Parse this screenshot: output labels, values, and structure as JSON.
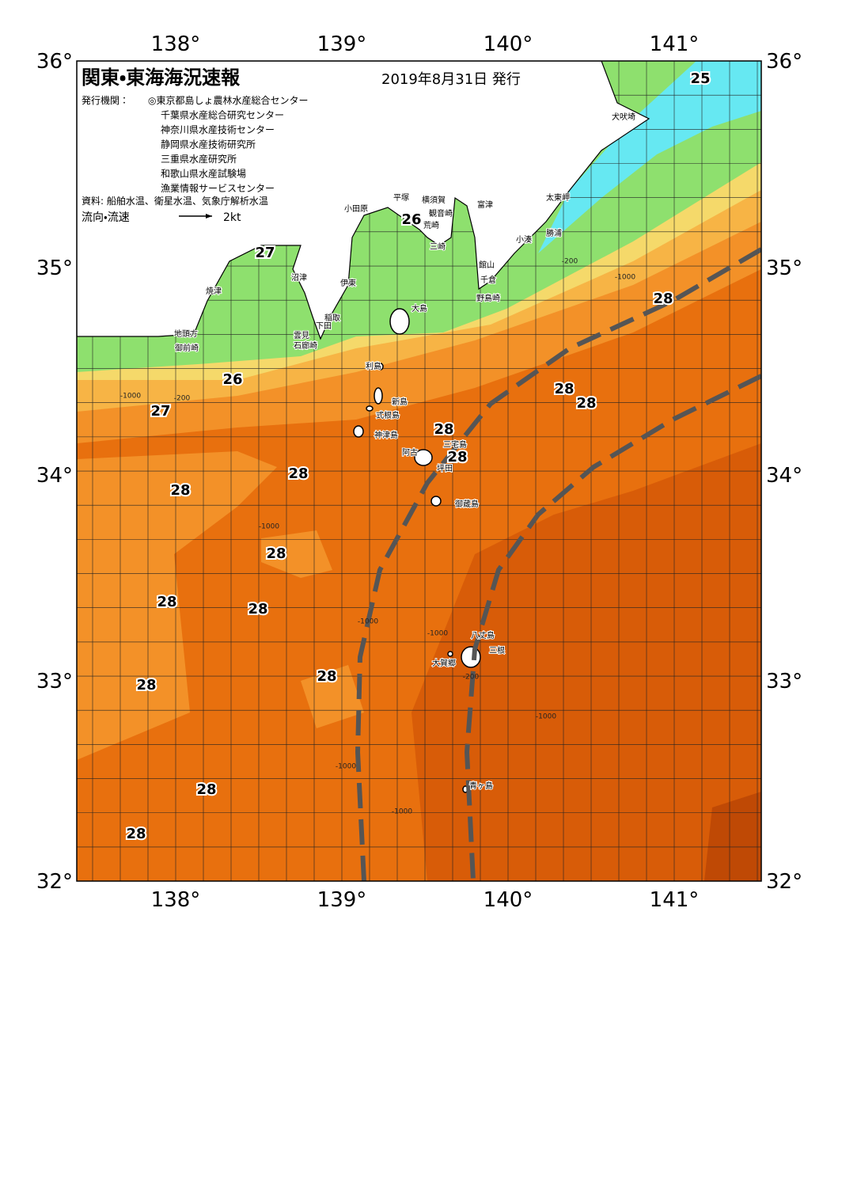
{
  "header": {
    "title": "関東・東海海況速報",
    "date": "2019年8月31日 発行"
  },
  "issuers": {
    "label": "発行機関：",
    "names": [
      "◎東京都島しょ農林水産総合センター",
      "千葉県水産総合研究センター",
      "神奈川県水産技術センター",
      "静岡県水産技術研究所",
      "三重県水産研究所",
      "和歌山県水産試験場",
      "漁業情報サービスセンター"
    ]
  },
  "sources": "資料: 船舶水温、衛星水温、気象庁解析水温",
  "legend": {
    "label": "流向・流速",
    "speed": "2kt"
  },
  "axes": {
    "longitude_labels": [
      "138°",
      "139°",
      "140°",
      "141°"
    ],
    "latitude_labels": [
      "36°",
      "35°",
      "34°",
      "33°",
      "32°"
    ]
  },
  "places": [
    "犬吠埼",
    "太東岬",
    "勝浦",
    "小湊",
    "富津",
    "館山",
    "千倉",
    "野島崎",
    "横須賀",
    "観音崎",
    "平塚",
    "荒崎",
    "三崎",
    "小田原",
    "沼津",
    "伊東",
    "焼津",
    "大島",
    "稲取",
    "下田",
    "雲見",
    "石廊崎",
    "地頭方",
    "御前崎",
    "利島",
    "新島",
    "式根島",
    "神津島",
    "三宅島",
    "阿古",
    "坪田",
    "御蔵島",
    "八丈島",
    "三根",
    "大賀郷",
    "青ヶ島"
  ],
  "temperature_labels": [
    25,
    26,
    27,
    26,
    27,
    28,
    28,
    28,
    28,
    28,
    28,
    28,
    28,
    28,
    28,
    28,
    28,
    28,
    28
  ],
  "depth_labels": [
    "-200",
    "-1000",
    "-1000",
    "-200",
    "-1000",
    "-1000",
    "-1000",
    "-200",
    "-1000",
    "-1000",
    "-1000"
  ]
}
